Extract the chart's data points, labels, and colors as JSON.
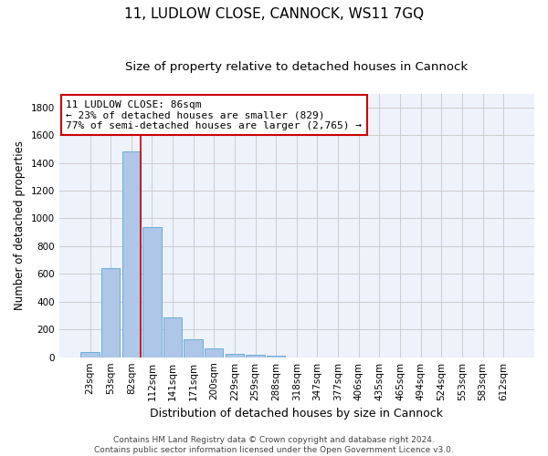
{
  "title": "11, LUDLOW CLOSE, CANNOCK, WS11 7GQ",
  "subtitle": "Size of property relative to detached houses in Cannock",
  "xlabel": "Distribution of detached houses by size in Cannock",
  "ylabel": "Number of detached properties",
  "bar_labels": [
    "23sqm",
    "53sqm",
    "82sqm",
    "112sqm",
    "141sqm",
    "171sqm",
    "200sqm",
    "229sqm",
    "259sqm",
    "288sqm",
    "318sqm",
    "347sqm",
    "377sqm",
    "406sqm",
    "435sqm",
    "465sqm",
    "494sqm",
    "524sqm",
    "553sqm",
    "583sqm",
    "612sqm"
  ],
  "bar_values": [
    40,
    645,
    1480,
    940,
    285,
    130,
    65,
    25,
    15,
    10,
    0,
    0,
    0,
    0,
    0,
    0,
    0,
    0,
    0,
    0,
    0
  ],
  "bar_color": "#aec6e8",
  "bar_edge_color": "#6baed6",
  "grid_color": "#cccccc",
  "background_color": "#eef2fb",
  "red_line_index": 2,
  "annotation_text": "11 LUDLOW CLOSE: 86sqm\n← 23% of detached houses are smaller (829)\n77% of semi-detached houses are larger (2,765) →",
  "annotation_box_color": "#ffffff",
  "annotation_border_color": "#cc0000",
  "ylim": [
    0,
    1900
  ],
  "yticks": [
    0,
    200,
    400,
    600,
    800,
    1000,
    1200,
    1400,
    1600,
    1800
  ],
  "footer_text": "Contains HM Land Registry data © Crown copyright and database right 2024.\nContains public sector information licensed under the Open Government Licence v3.0.",
  "title_fontsize": 11,
  "subtitle_fontsize": 9.5,
  "xlabel_fontsize": 9,
  "ylabel_fontsize": 8.5,
  "tick_fontsize": 7.5,
  "annotation_fontsize": 8,
  "footer_fontsize": 6.5
}
